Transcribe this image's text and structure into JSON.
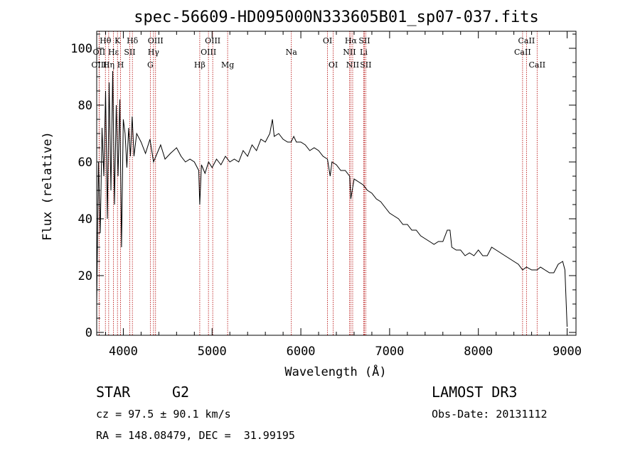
{
  "title": "spec-56609-HD095000N333605B01_sp07-037.fits",
  "info": {
    "object_class": "STAR",
    "subclass": "G2",
    "survey": "LAMOST DR3",
    "redshift_line": "cz = 97.5 ± 90.1 km/s",
    "obs_date_line": "Obs-Date: 20131112",
    "coords_line": "RA = 148.08479, DEC =  31.99195"
  },
  "colors": {
    "axes": "#000000",
    "spectrum": "#000000",
    "line_marker": "#b30000"
  },
  "chart_data": {
    "type": "line",
    "title": "spec-56609-HD095000N333605B01_sp07-037.fits",
    "xlabel": "Wavelength (Å)",
    "ylabel": "Flux (relative)",
    "xlim": [
      3700,
      9100
    ],
    "ylim": [
      -1,
      106
    ],
    "xticks": [
      4000,
      5000,
      6000,
      7000,
      8000,
      9000
    ],
    "yticks": [
      0,
      20,
      40,
      60,
      80,
      100
    ],
    "series": [
      {
        "name": "flux",
        "x": [
          3700,
          3720,
          3740,
          3760,
          3780,
          3800,
          3820,
          3840,
          3860,
          3880,
          3900,
          3920,
          3940,
          3960,
          3980,
          4000,
          4020,
          4040,
          4060,
          4080,
          4100,
          4120,
          4150,
          4200,
          4250,
          4300,
          4340,
          4380,
          4420,
          4470,
          4530,
          4600,
          4650,
          4700,
          4750,
          4800,
          4850,
          4861,
          4880,
          4920,
          4960,
          5000,
          5050,
          5100,
          5150,
          5200,
          5250,
          5300,
          5350,
          5400,
          5450,
          5500,
          5550,
          5600,
          5650,
          5680,
          5700,
          5750,
          5800,
          5850,
          5890,
          5920,
          5950,
          6000,
          6050,
          6100,
          6150,
          6200,
          6250,
          6300,
          6330,
          6350,
          6400,
          6450,
          6500,
          6550,
          6563,
          6600,
          6650,
          6700,
          6750,
          6800,
          6850,
          6900,
          6950,
          7000,
          7050,
          7100,
          7150,
          7200,
          7250,
          7300,
          7350,
          7400,
          7450,
          7500,
          7550,
          7600,
          7650,
          7680,
          7700,
          7750,
          7800,
          7850,
          7900,
          7950,
          8000,
          8050,
          8100,
          8150,
          8200,
          8250,
          8300,
          8350,
          8400,
          8450,
          8498,
          8542,
          8600,
          8662,
          8700,
          8750,
          8800,
          8850,
          8900,
          8950,
          8975,
          9000
        ],
        "y": [
          10,
          60,
          35,
          72,
          55,
          85,
          40,
          88,
          50,
          92,
          45,
          80,
          55,
          82,
          30,
          75,
          70,
          58,
          72,
          62,
          76,
          62,
          70,
          67,
          63,
          68,
          60,
          63,
          66,
          61,
          63,
          65,
          62,
          60,
          61,
          60,
          57,
          45,
          59,
          56,
          60,
          58,
          61,
          59,
          62,
          60,
          61,
          60,
          64,
          62,
          66,
          64,
          68,
          67,
          70,
          75,
          69,
          70,
          68,
          67,
          67,
          69,
          67,
          67,
          66,
          64,
          65,
          64,
          62,
          61,
          55,
          60,
          59,
          57,
          57,
          55,
          47,
          54,
          53,
          52,
          50,
          49,
          47,
          46,
          44,
          42,
          41,
          40,
          38,
          38,
          36,
          36,
          34,
          33,
          32,
          31,
          32,
          32,
          36,
          36,
          30,
          29,
          29,
          27,
          28,
          27,
          29,
          27,
          27,
          30,
          29,
          28,
          27,
          26,
          25,
          24,
          22,
          23,
          22,
          22,
          23,
          22,
          21,
          21,
          24,
          25,
          22,
          2
        ]
      }
    ],
    "spectral_lines": [
      {
        "label": "Hθ",
        "wavelength": 3798,
        "row": 1
      },
      {
        "label": "OII",
        "wavelength": 3727,
        "row": 2
      },
      {
        "label": "OIII",
        "wavelength": 3727,
        "row": 3
      },
      {
        "label": "Hε",
        "wavelength": 3889,
        "row": 2
      },
      {
        "label": "Hη",
        "wavelength": 3835,
        "row": 3
      },
      {
        "label": "K",
        "wavelength": 3934,
        "row": 1
      },
      {
        "label": "H",
        "wavelength": 3969,
        "row": 3
      },
      {
        "label": "SII",
        "wavelength": 4072,
        "row": 2
      },
      {
        "label": "Hδ",
        "wavelength": 4102,
        "row": 1
      },
      {
        "label": "OIII",
        "wavelength": 4363,
        "row": 1
      },
      {
        "label": "Hγ",
        "wavelength": 4340,
        "row": 2
      },
      {
        "label": "G",
        "wavelength": 4304,
        "row": 3
      },
      {
        "label": "Hβ",
        "wavelength": 4861,
        "row": 3
      },
      {
        "label": "OIII",
        "wavelength": 5007,
        "row": 1
      },
      {
        "label": "OIII",
        "wavelength": 4959,
        "row": 2
      },
      {
        "label": "Mg",
        "wavelength": 5175,
        "row": 3
      },
      {
        "label": "Na",
        "wavelength": 5893,
        "row": 2
      },
      {
        "label": "OI",
        "wavelength": 6300,
        "row": 1
      },
      {
        "label": "OI",
        "wavelength": 6364,
        "row": 3
      },
      {
        "label": "Hα",
        "wavelength": 6563,
        "row": 1
      },
      {
        "label": "NII",
        "wavelength": 6548,
        "row": 2
      },
      {
        "label": "NII",
        "wavelength": 6584,
        "row": 3
      },
      {
        "label": "SII",
        "wavelength": 6716,
        "row": 1
      },
      {
        "label": "Li",
        "wavelength": 6708,
        "row": 2
      },
      {
        "label": "SII",
        "wavelength": 6731,
        "row": 3
      },
      {
        "label": "CaII",
        "wavelength": 8542,
        "row": 1
      },
      {
        "label": "CaII",
        "wavelength": 8498,
        "row": 2
      },
      {
        "label": "CaII",
        "wavelength": 8662,
        "row": 3
      }
    ]
  }
}
